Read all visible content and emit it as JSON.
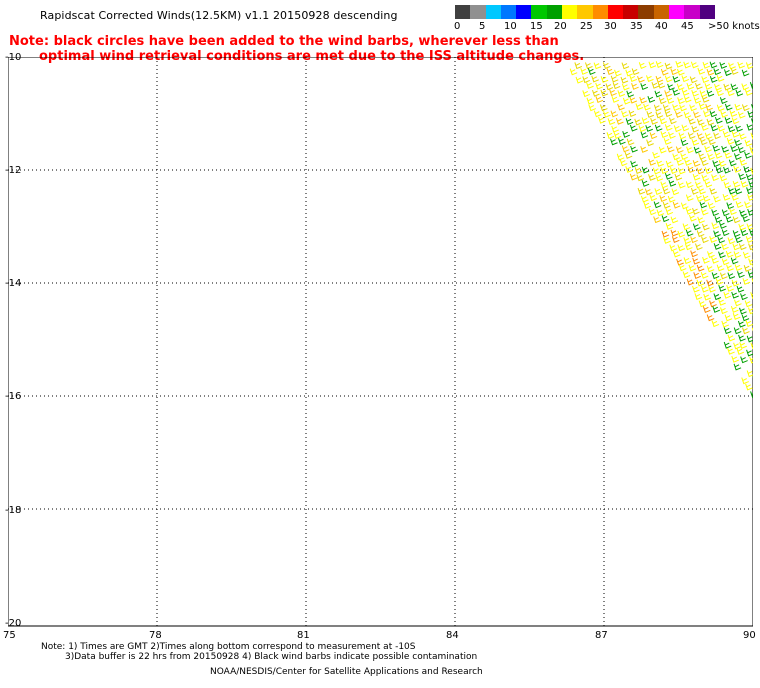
{
  "title": "Rapidscat Corrected Winds(12.5KM) v1.1 20150928 descending",
  "note": {
    "line1": "Note: black circles have been added to the wind barbs, wherever less than",
    "line2": "optimal wind retrieval conditions are met due to the ISS altitude changes."
  },
  "colorbar": {
    "colors": [
      "#404040",
      "#909090",
      "#00c8ff",
      "#0078ff",
      "#0000ff",
      "#00c800",
      "#00a000",
      "#ffff00",
      "#ffc800",
      "#ff8c00",
      "#ff0000",
      "#c80000",
      "#8c3c00",
      "#c86400",
      "#ff00ff",
      "#c800c8",
      "#500080"
    ],
    "labels": [
      "0",
      "5",
      "10",
      "15",
      "20",
      "25",
      "30",
      "35",
      "40",
      "45",
      ">50 knots"
    ]
  },
  "map": {
    "lat_labels": [
      "-10",
      "-12",
      "-14",
      "-16",
      "-18",
      "-20"
    ],
    "lon_labels": [
      "75",
      "78",
      "81",
      "84",
      "87",
      "90"
    ],
    "barb_colors": [
      "#ffff00",
      "#e8d800",
      "#ffc800",
      "#ff8c00",
      "#00a000"
    ]
  },
  "footer": {
    "line1": "Note: 1) Times are GMT 2)Times along bottom correspond to measurement at -10S",
    "line2": "3)Data buffer is 22 hrs from 20150928 4) Black wind barbs indicate possible contamination",
    "line3": "NOAA/NESDIS/Center for Satellite Applications and Research"
  }
}
